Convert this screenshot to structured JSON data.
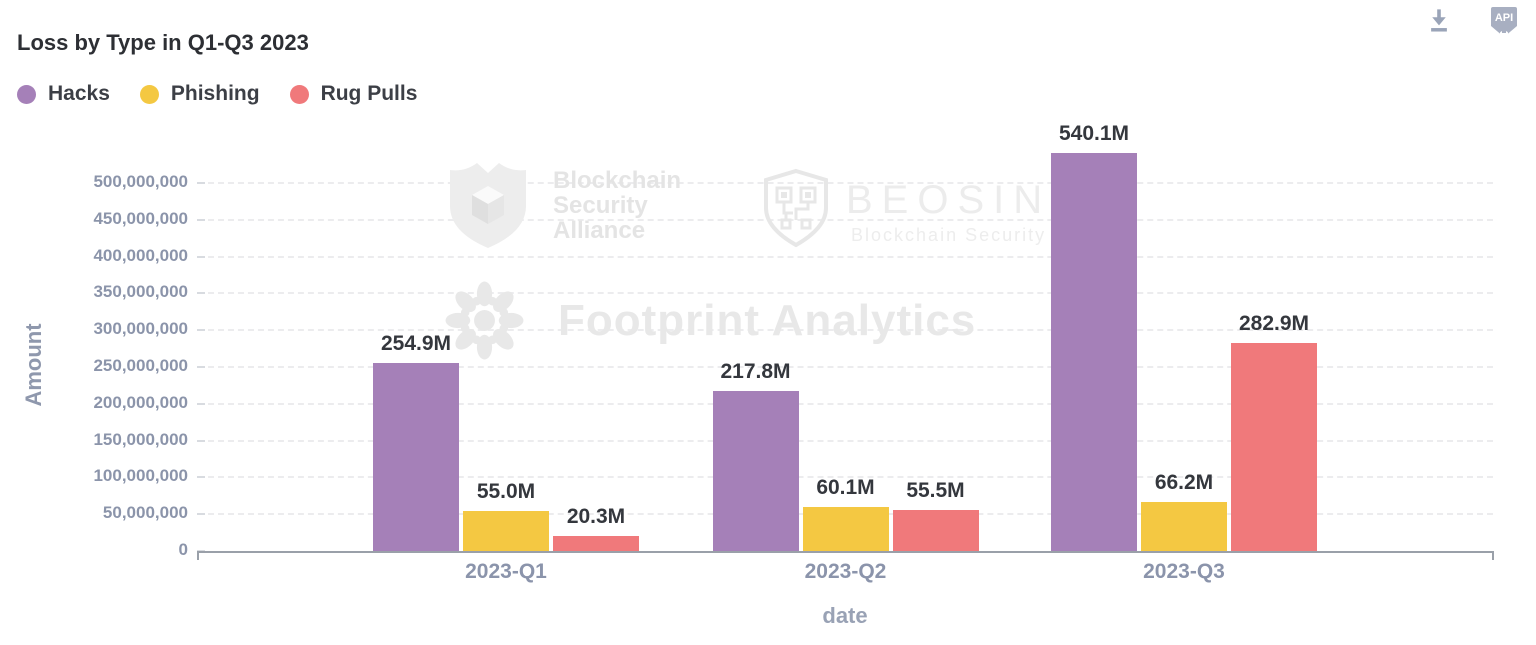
{
  "toolbar": {
    "api_badge_label": "API"
  },
  "chart_data": {
    "type": "bar",
    "title": "Loss by Type in Q1-Q3 2023",
    "xlabel": "date",
    "ylabel": "Amount",
    "categories": [
      "2023-Q1",
      "2023-Q2",
      "2023-Q3"
    ],
    "series": [
      {
        "name": "Hacks",
        "color": "#a580b8",
        "values": [
          254900000,
          217800000,
          540100000
        ],
        "value_labels": [
          "254.9M",
          "217.8M",
          "540.1M"
        ]
      },
      {
        "name": "Phishing",
        "color": "#f4c842",
        "values": [
          55000000,
          60100000,
          66200000
        ],
        "value_labels": [
          "55.0M",
          "60.1M",
          "66.2M"
        ]
      },
      {
        "name": "Rug Pulls",
        "color": "#f0797b",
        "values": [
          20300000,
          55500000,
          282900000
        ],
        "value_labels": [
          "20.3M",
          "55.5M",
          "282.9M"
        ]
      }
    ],
    "ylim": [
      0,
      500000000
    ],
    "ytick_interval": 50000000,
    "ytick_labels": [
      "0",
      "50,000,000",
      "100,000,000",
      "150,000,000",
      "200,000,000",
      "250,000,000",
      "300,000,000",
      "350,000,000",
      "400,000,000",
      "450,000,000",
      "500,000,000"
    ],
    "grid": "horizontal-dashed",
    "legend_position": "top-left"
  },
  "watermarks": {
    "alliance": {
      "icon": "shield-cube-icon",
      "lines": [
        "Blockchain",
        "Security",
        "Alliance"
      ]
    },
    "beosin": {
      "icon": "shield-circuit-icon",
      "name": "BEOSIN",
      "subtitle": "Blockchain Security"
    },
    "footprint": {
      "icon": "flower-icon",
      "text": "Footprint Analytics"
    }
  }
}
